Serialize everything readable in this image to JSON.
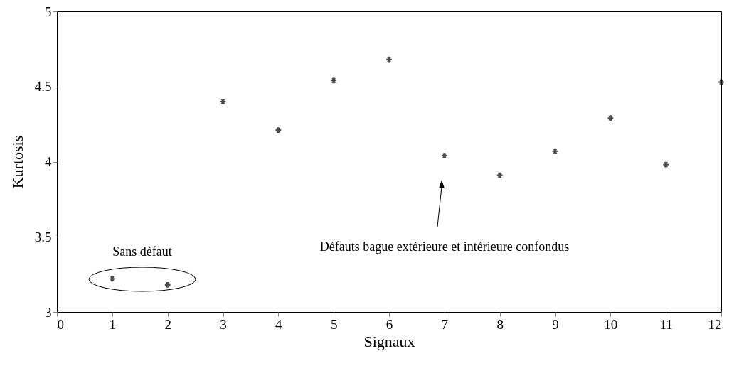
{
  "chart_data": {
    "type": "scatter",
    "xlabel": "Signaux",
    "ylabel": "Kurtosis",
    "x": [
      1,
      2,
      3,
      4,
      5,
      6,
      7,
      8,
      9,
      10,
      11,
      12
    ],
    "values": [
      3.22,
      3.18,
      4.4,
      4.21,
      4.54,
      4.68,
      4.04,
      3.91,
      4.07,
      4.29,
      3.98,
      4.53
    ],
    "color": "#000000",
    "marker": "cross",
    "xlim": [
      0,
      12
    ],
    "xticks": [
      0,
      1,
      2,
      3,
      4,
      5,
      6,
      7,
      8,
      9,
      10,
      11,
      12
    ],
    "ylim": [
      3,
      5
    ],
    "yticks": [
      3,
      3.5,
      4,
      4.5,
      5
    ],
    "grid": false,
    "annotations": [
      "Sans défaut",
      "Défauts bague extérieure et intérieure confondus"
    ]
  }
}
